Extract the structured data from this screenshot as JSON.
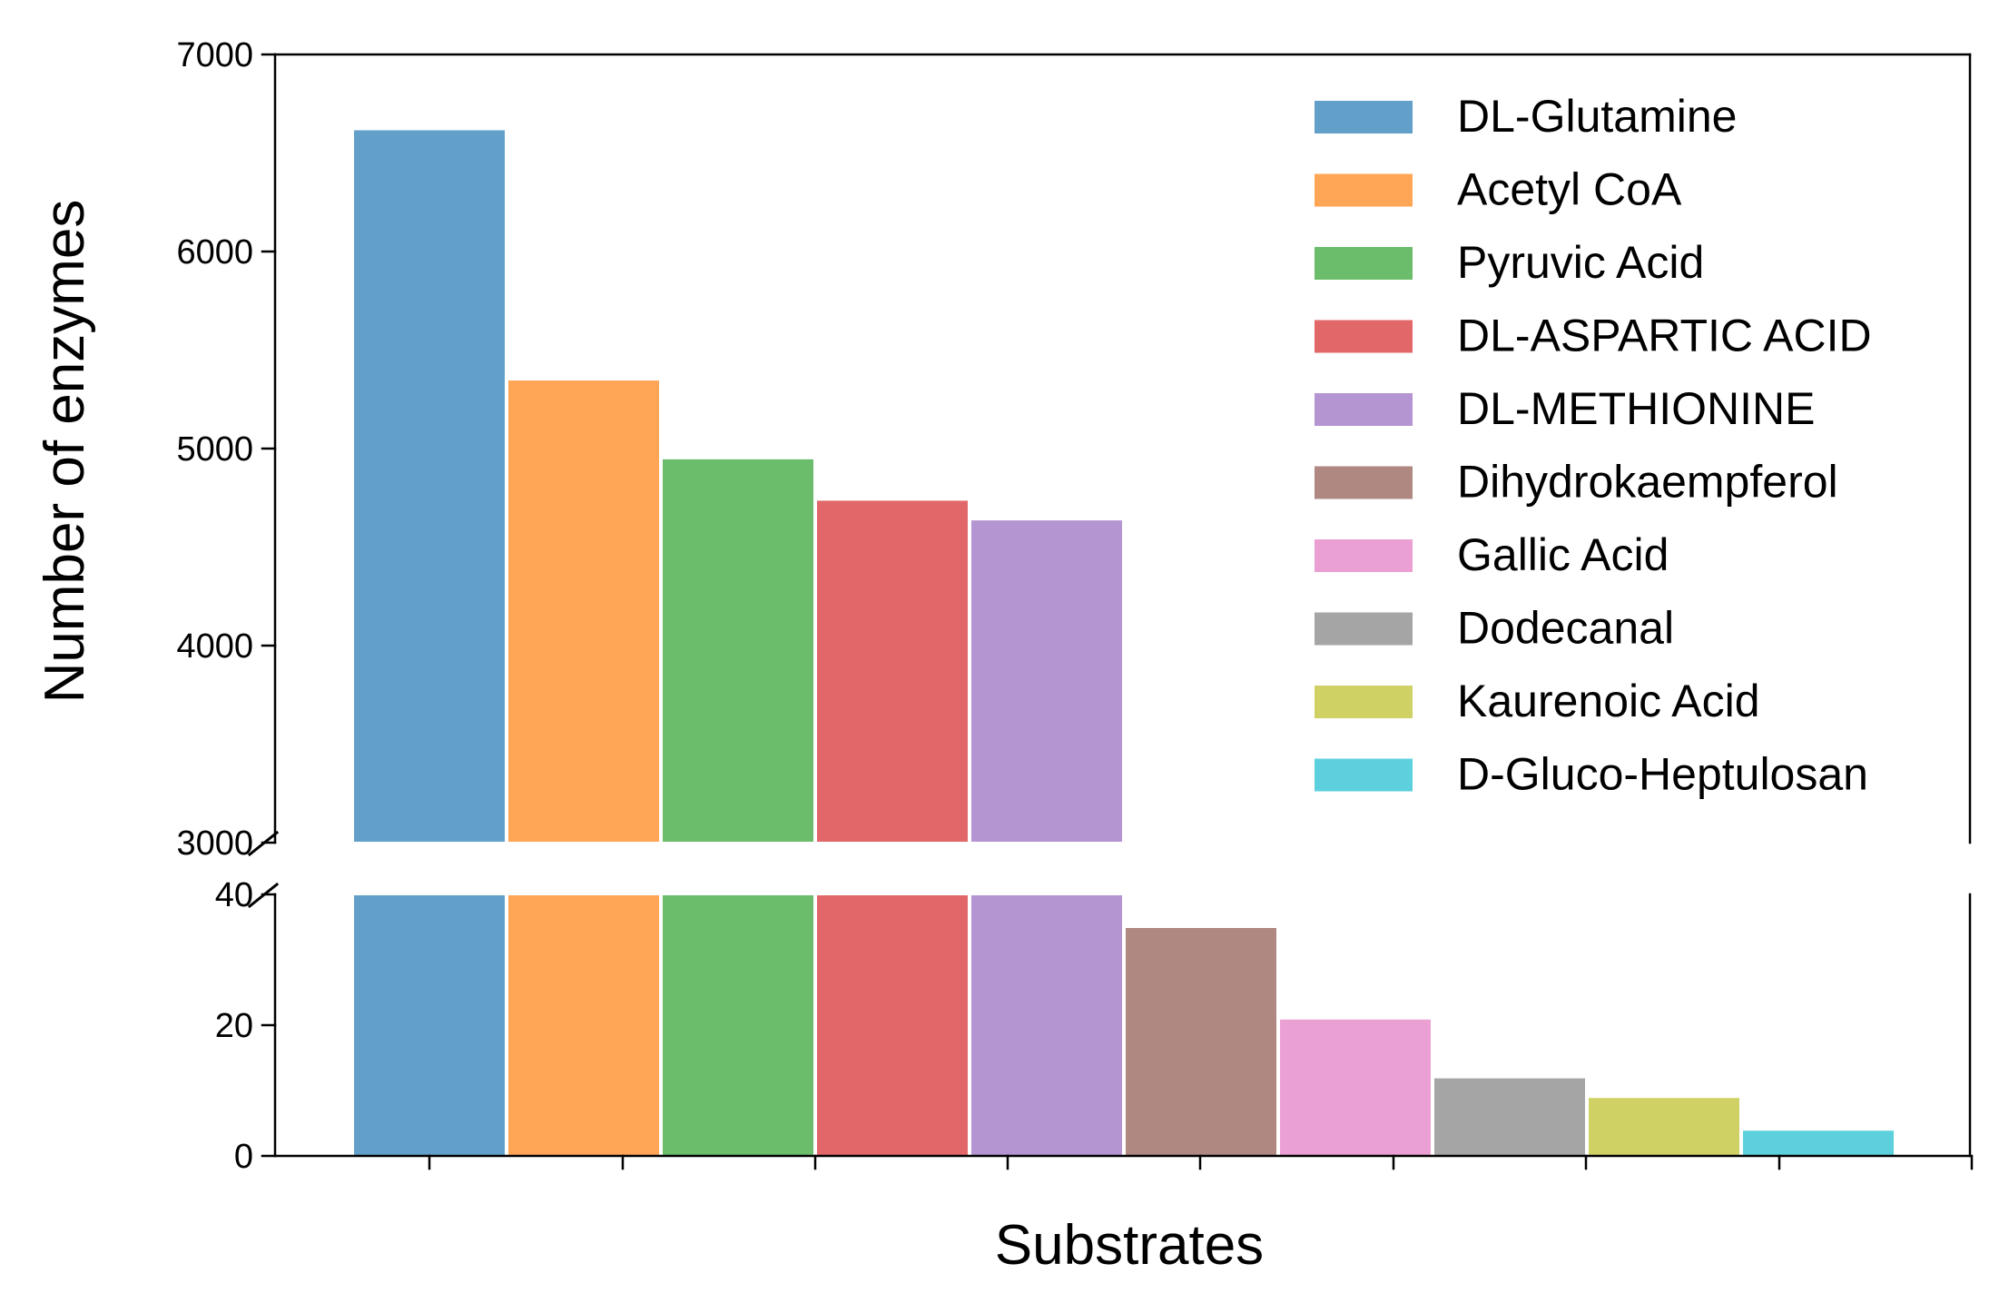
{
  "chart_data": {
    "type": "bar",
    "broken_y_axis": true,
    "xlabel": "Substrates",
    "ylabel": "Number of enzymes",
    "categories": [
      "DL-Glutamine",
      "Acetyl CoA",
      "Pyruvic Acid",
      "DL-ASPARTIC ACID",
      "DL-METHIONINE",
      "Dihydrokaempferol",
      "Gallic Acid",
      "Dodecanal",
      "Kaurenoic Acid",
      "D-Gluco-Heptulosan"
    ],
    "values": [
      6620,
      5350,
      4950,
      4740,
      4640,
      35,
      21,
      12,
      9,
      4
    ],
    "colors": [
      "#1f77b4",
      "#ff7f0e",
      "#2ca02c",
      "#d62728",
      "#9467bd",
      "#8c564b",
      "#e377c2",
      "#7f7f7f",
      "#bcbd22",
      "#17becf"
    ],
    "upper_ylim": [
      3000,
      7000
    ],
    "lower_ylim": [
      0,
      40
    ],
    "upper_yticks": [
      "3000",
      "4000",
      "5000",
      "6000",
      "7000"
    ],
    "lower_yticks": [
      "0",
      "20",
      "40"
    ],
    "legend_position": "top-right",
    "grid": false
  }
}
